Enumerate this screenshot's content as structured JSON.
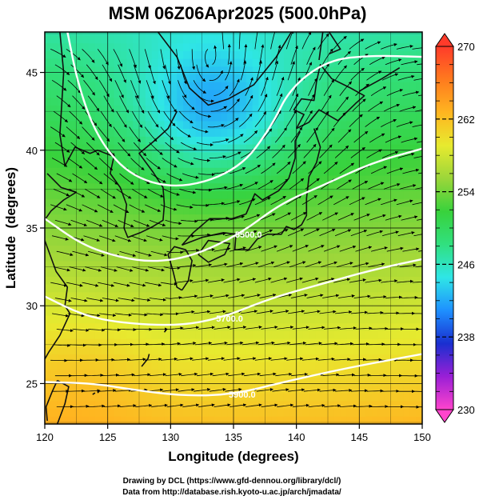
{
  "chart_data": {
    "type": "heatmap",
    "title": "MSM 06Z06Apr2025 (500.0hPa)",
    "xlabel": "Longitude (degrees)",
    "ylabel": "Latitude  (degrees)",
    "xlim": [
      120,
      150
    ],
    "ylim": [
      22.4,
      47.6
    ],
    "x_ticks": [
      120,
      125,
      130,
      135,
      140,
      145,
      150
    ],
    "y_ticks": [
      25,
      30,
      35,
      40,
      45
    ],
    "grid": true,
    "shaded_variable_range": [
      230,
      270
    ],
    "colorbar": {
      "ticks": [
        230,
        238,
        246,
        254,
        262,
        270
      ],
      "colors": [
        "#ff44cc",
        "#9a1fd6",
        "#1a2fd0",
        "#1e90ff",
        "#2fe6e6",
        "#31e07f",
        "#38d23c",
        "#9bd63a",
        "#e7ea2f",
        "#ffb520",
        "#ff7a1e",
        "#ff3b2a"
      ]
    },
    "contours": [
      {
        "label": "",
        "points": [
          [
            121.8,
            47.6
          ],
          [
            122.7,
            44
          ],
          [
            124.3,
            40.6
          ],
          [
            127,
            38.2
          ],
          [
            131,
            37.5
          ],
          [
            135.5,
            38.8
          ],
          [
            138,
            41.5
          ],
          [
            139.5,
            44
          ],
          [
            142.5,
            45.8
          ],
          [
            146,
            46.1
          ],
          [
            150,
            46
          ]
        ]
      },
      {
        "label": "5500.0",
        "points": [
          [
            120,
            35.6
          ],
          [
            123,
            33.9
          ],
          [
            126,
            33.1
          ],
          [
            128.7,
            32.8
          ],
          [
            131.8,
            33.2
          ],
          [
            135.5,
            34.6
          ],
          [
            138.8,
            36.6
          ],
          [
            142,
            37.7
          ],
          [
            146,
            39.2
          ],
          [
            150,
            40.1
          ]
        ]
      },
      {
        "label": "5700.0",
        "points": [
          [
            120,
            30.6
          ],
          [
            123,
            29.4
          ],
          [
            126,
            28.9
          ],
          [
            130.5,
            28.7
          ],
          [
            134,
            29.2
          ],
          [
            138,
            30.5
          ],
          [
            142,
            31.4
          ],
          [
            146,
            32.3
          ],
          [
            150,
            33
          ]
        ]
      },
      {
        "label": "5900.0",
        "points": [
          [
            120,
            25.1
          ],
          [
            124,
            25
          ],
          [
            127,
            24.6
          ],
          [
            131,
            24.2
          ],
          [
            135,
            24.3
          ],
          [
            139,
            25.1
          ],
          [
            144,
            26
          ],
          [
            150,
            26.9
          ]
        ]
      }
    ],
    "cold_core": {
      "lon": 133.3,
      "lat": 42.4,
      "value": 246
    }
  },
  "credits": {
    "line1": "Drawing by DCL (https://www.gfd-dennou.org/library/dcl/)",
    "line2": "Data from http://database.rish.kyoto-u.ac.jp/arch/jmadata/"
  }
}
